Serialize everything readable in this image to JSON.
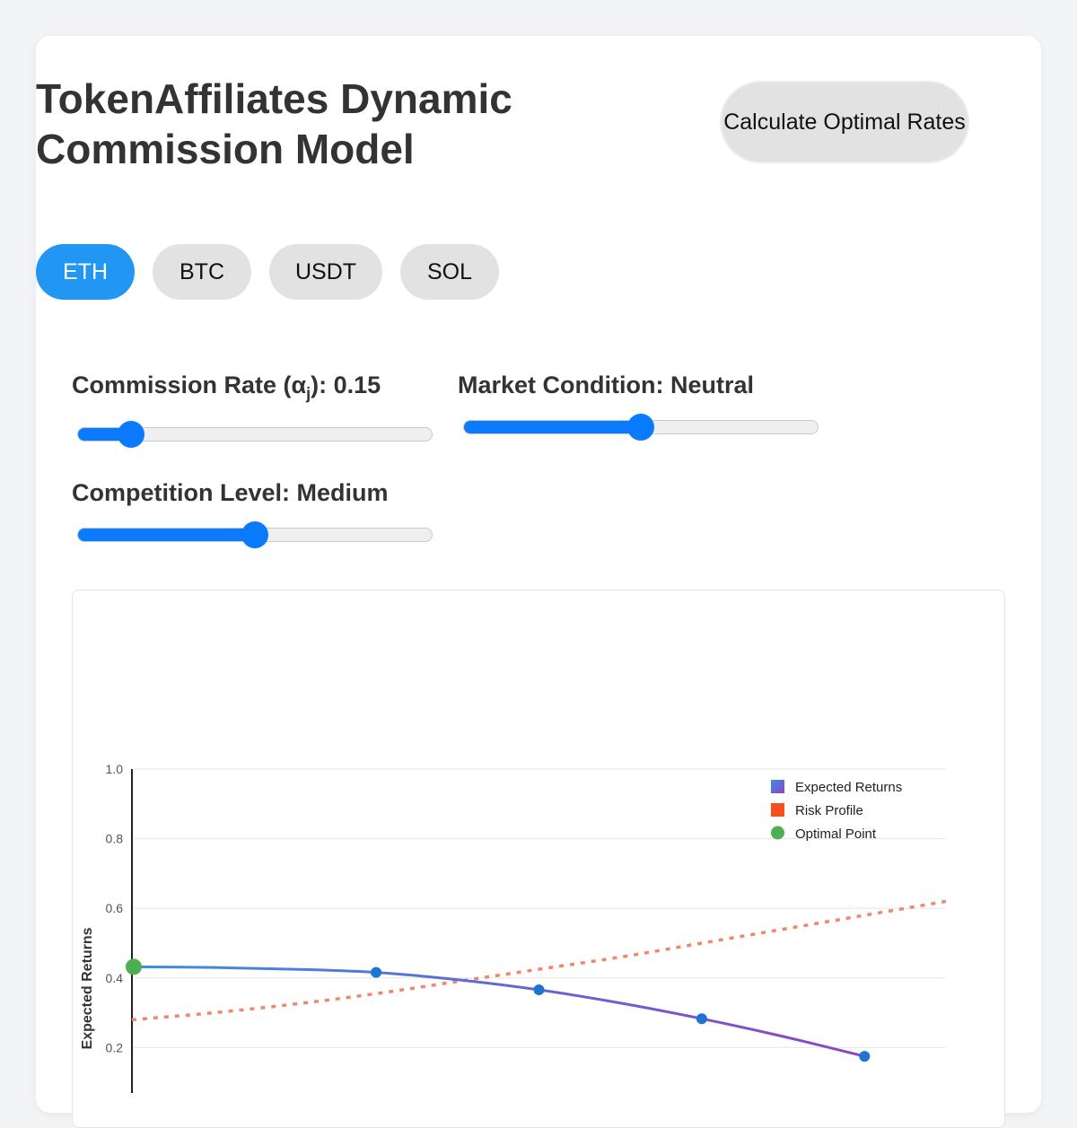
{
  "header": {
    "title": "TokenAffiliates Dynamic Commission Model",
    "calculate_label": "Calculate Optimal Rates"
  },
  "tokens": {
    "items": [
      "ETH",
      "BTC",
      "USDT",
      "SOL"
    ],
    "selected": "ETH"
  },
  "controls": {
    "commission": {
      "label_prefix": "Commission Rate (α",
      "label_sub": "j",
      "label_suffix": "): 0.15",
      "value": 0.15,
      "min": 0,
      "max": 1
    },
    "market": {
      "label": "Market Condition: Neutral",
      "level": 0.5
    },
    "competition": {
      "label": "Competition Level: Medium",
      "level": 0.5
    }
  },
  "colors": {
    "accent": "#2196f3",
    "slider": "#0a7bff",
    "expected_start": "#3b8fe0",
    "expected_end": "#8e44c4",
    "risk": "#f0876a",
    "risk_legend": "#f4511e",
    "optimal": "#4caf50",
    "point": "#1e74d0"
  },
  "chart_data": {
    "type": "line",
    "title": "",
    "ylabel": "Expected Returns",
    "ylim": [
      0,
      1.0
    ],
    "xlim": [
      0,
      0.5
    ],
    "yticks": [
      "0.2",
      "0.4",
      "0.6",
      "0.8",
      "1.0"
    ],
    "legend_position": "top-right",
    "series": [
      {
        "name": "Expected Returns",
        "style": "solid-gradient",
        "x": [
          0.0,
          0.05,
          0.1,
          0.15,
          0.2,
          0.25,
          0.3,
          0.35,
          0.4,
          0.45
        ],
        "y": [
          0.432,
          0.43,
          0.425,
          0.416,
          0.395,
          0.366,
          0.328,
          0.283,
          0.232,
          0.175
        ]
      },
      {
        "name": "Risk Profile",
        "style": "dotted",
        "x": [
          0.0,
          0.05,
          0.1,
          0.15,
          0.2,
          0.25,
          0.3,
          0.35,
          0.4,
          0.45,
          0.5
        ],
        "y": [
          0.28,
          0.3,
          0.325,
          0.355,
          0.39,
          0.425,
          0.46,
          0.5,
          0.54,
          0.58,
          0.62
        ]
      }
    ],
    "markers": [
      {
        "x": 0.15,
        "y": 0.416
      },
      {
        "x": 0.25,
        "y": 0.366
      },
      {
        "x": 0.35,
        "y": 0.283
      },
      {
        "x": 0.45,
        "y": 0.175
      }
    ],
    "optimal_point": {
      "name": "Optimal Point",
      "x": 0.0,
      "y": 0.432
    }
  }
}
